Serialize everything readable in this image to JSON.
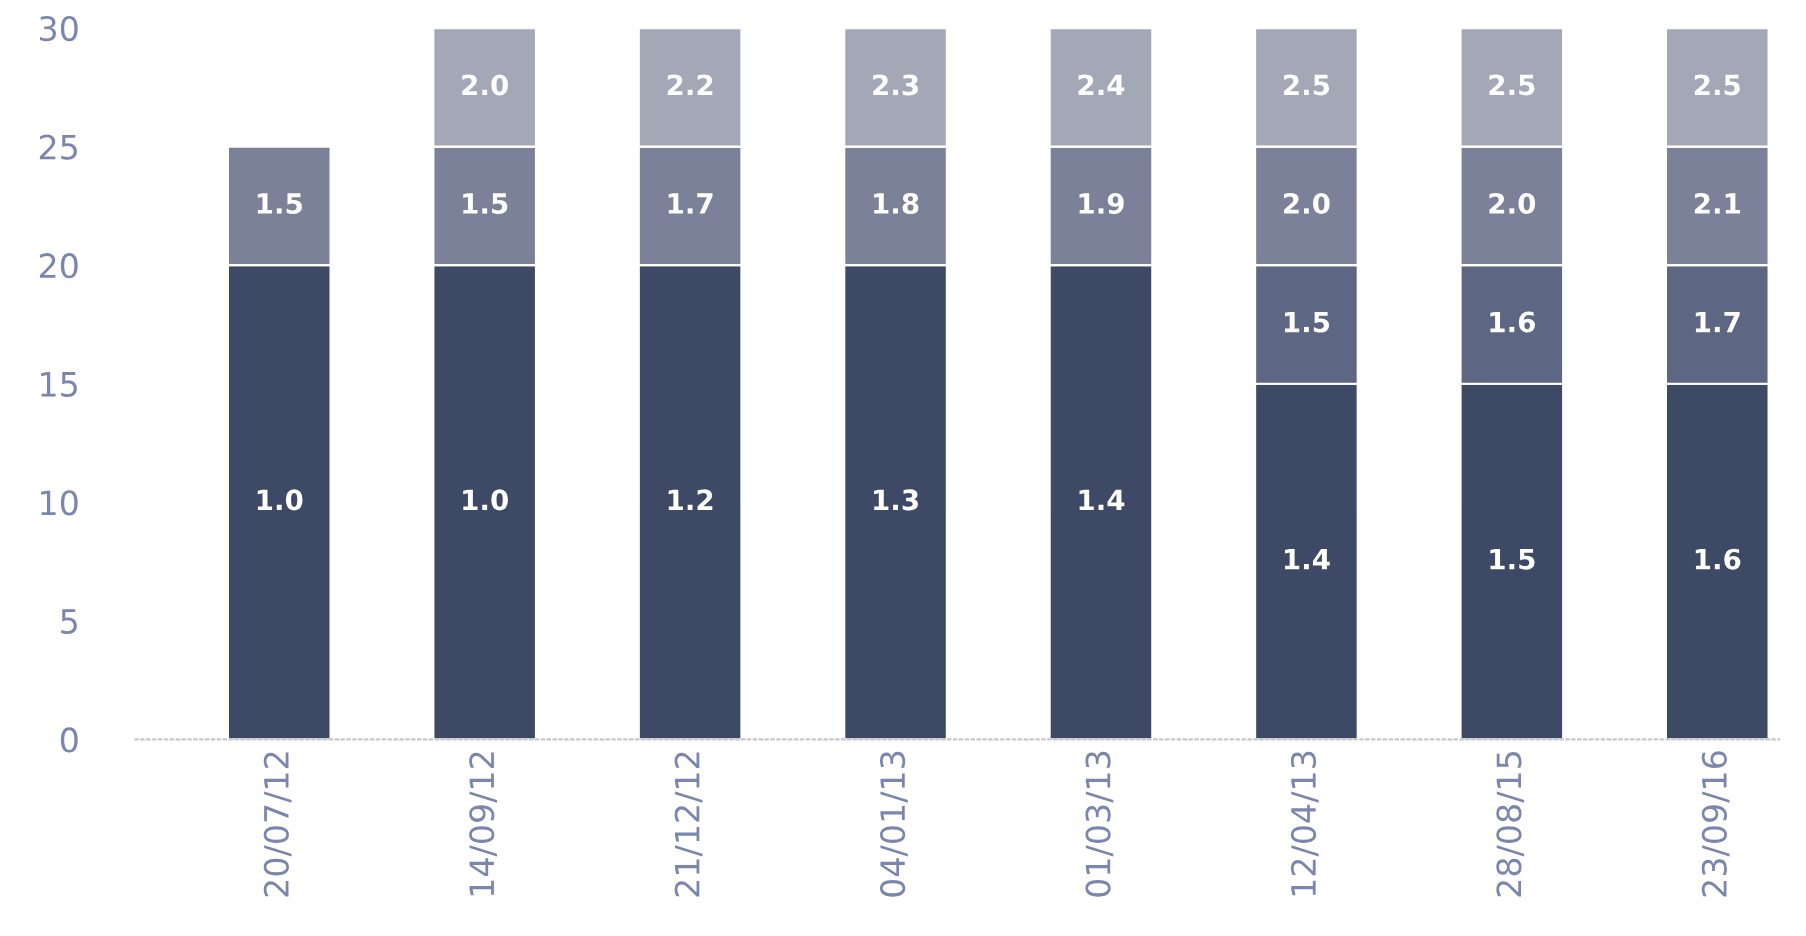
{
  "chart_data": {
    "type": "bar",
    "stacked": true,
    "categories": [
      "20/07/12",
      "14/09/12",
      "21/12/12",
      "04/01/13",
      "01/03/13",
      "12/04/13",
      "28/08/15",
      "23/09/16"
    ],
    "series": [
      {
        "color": "#3e4965",
        "values": [
          20,
          20,
          20,
          20,
          20,
          15,
          15,
          15
        ]
      },
      {
        "color": "#5d6682",
        "values": [
          null,
          null,
          null,
          null,
          null,
          5,
          5,
          5
        ]
      },
      {
        "color": "#7a8198",
        "values": [
          5,
          5,
          5,
          5,
          5,
          5,
          5,
          5
        ]
      },
      {
        "color": "#a4a8b6",
        "values": [
          null,
          5,
          5,
          5,
          5,
          5,
          5,
          5
        ]
      }
    ],
    "annotations": [
      "1.0",
      "1.0",
      "1.2",
      "1.3",
      "1.4",
      "1.4",
      "1.5",
      "1.6",
      "1.5",
      "1.6",
      "1.7",
      "1.5",
      "1.5",
      "1.7",
      "1.8",
      "1.9",
      "2.0",
      "2.0",
      "2.1",
      "2.0",
      "2.2",
      "2.3",
      "2.4",
      "2.5",
      "2.5",
      "2.5"
    ],
    "ylim": [
      0,
      30
    ],
    "yticks": [
      0,
      5,
      10,
      15,
      20,
      25,
      30
    ],
    "grid": false,
    "legend": false
  }
}
